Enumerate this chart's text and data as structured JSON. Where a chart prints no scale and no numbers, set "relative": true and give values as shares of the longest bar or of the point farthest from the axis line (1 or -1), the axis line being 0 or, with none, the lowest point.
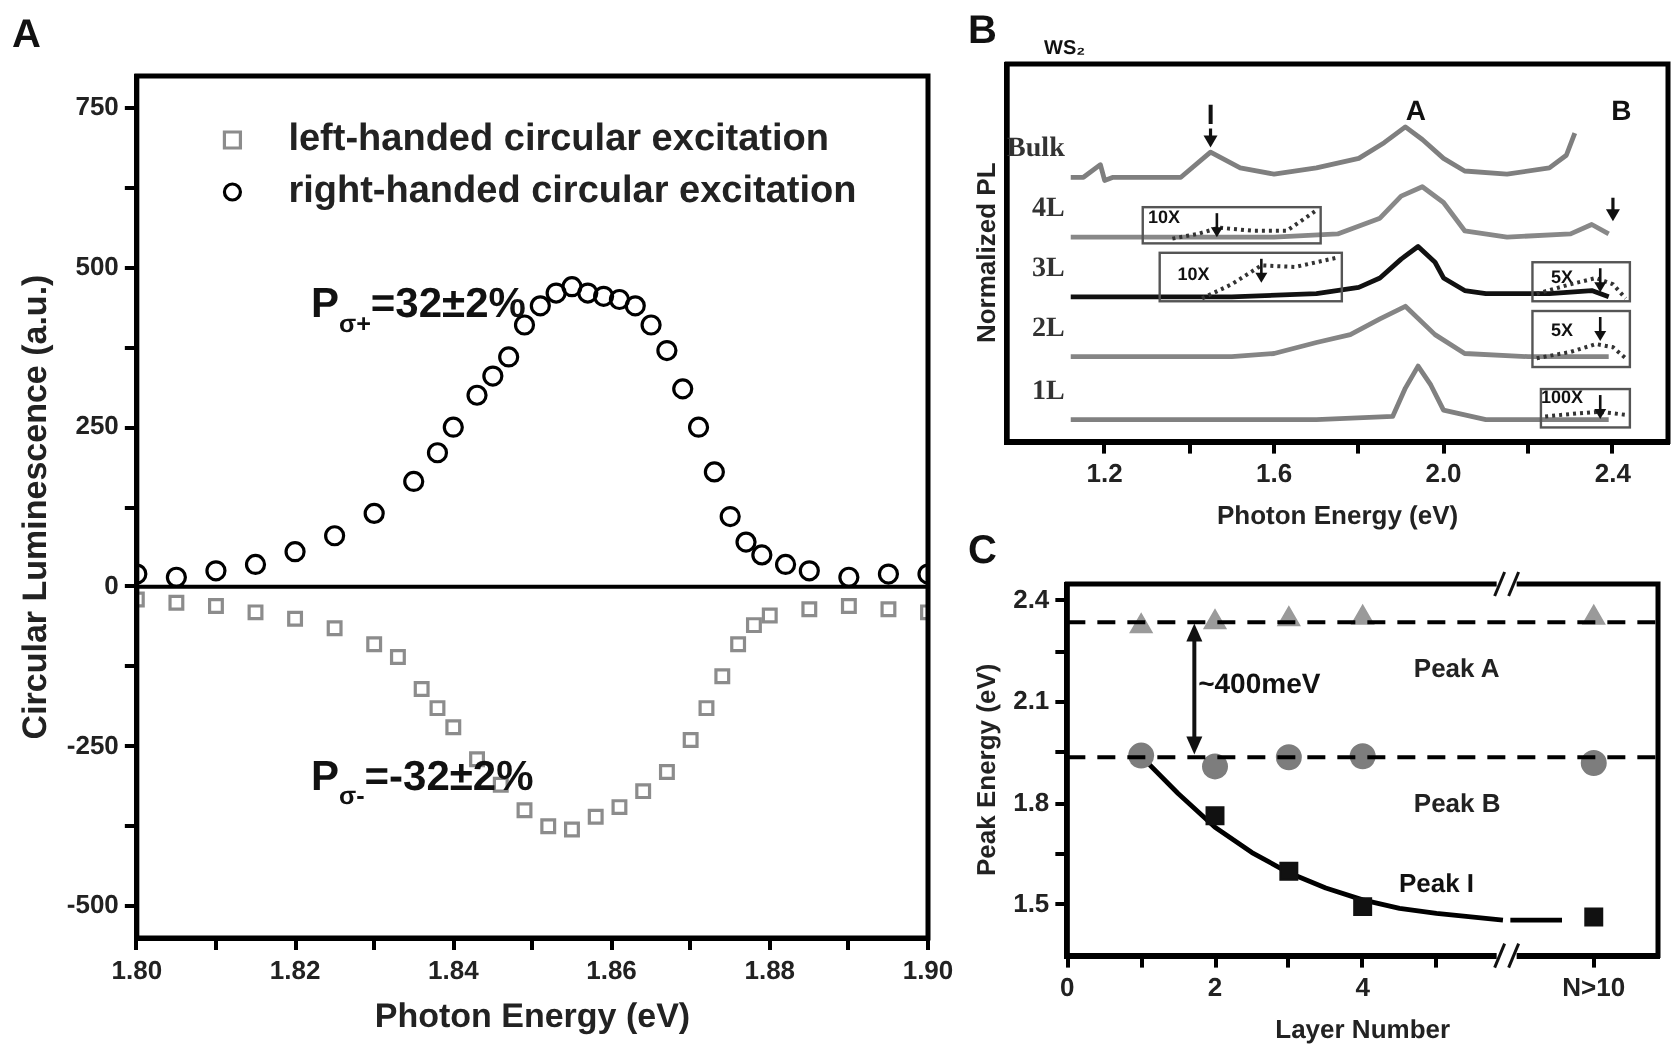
{
  "chart_data": [
    {
      "type": "scatter",
      "title": "A",
      "xlabel": "Photon Energy (eV)",
      "ylabel": "Circular Luminescence (a.u.)",
      "grid": false,
      "xlim": [
        1.8,
        1.9
      ],
      "xticks": [
        {
          "value": 1.8,
          "label": "1.80"
        },
        {
          "value": 1.81,
          "label": null
        },
        {
          "value": 1.82,
          "label": "1.82"
        },
        {
          "value": 1.83,
          "label": null
        },
        {
          "value": 1.84,
          "label": "1.84"
        },
        {
          "value": 1.85,
          "label": null
        },
        {
          "value": 1.86,
          "label": "1.86"
        },
        {
          "value": 1.87,
          "label": null
        },
        {
          "value": 1.88,
          "label": "1.88"
        },
        {
          "value": 1.89,
          "label": null
        },
        {
          "value": 1.9,
          "label": "1.90"
        }
      ],
      "legend": "top",
      "ylim": [
        -550,
        800
      ],
      "yticks": [
        -500,
        {
          "value": -375,
          "label": null
        },
        -250,
        {
          "value": -125,
          "label": null
        },
        0,
        {
          "value": 125,
          "label": null
        },
        250,
        {
          "value": 375,
          "label": null
        },
        500,
        {
          "value": 625,
          "label": null
        },
        750
      ],
      "ref_lines": [
        {
          "axis": "y",
          "value": 0,
          "color": "#000000"
        }
      ],
      "annotations": [
        "P$_{σ+}$=32±2%",
        "P$_{σ-}$=-32±2%"
      ],
      "series": [
        {
          "name": "left-handed circular excitation",
          "color": "#8c8c8c",
          "marker": "square",
          "x": [
            1.8,
            1.805,
            1.81,
            1.815,
            1.82,
            1.825,
            1.83,
            1.833,
            1.836,
            1.838,
            1.84,
            1.843,
            1.846,
            1.849,
            1.852,
            1.855,
            1.858,
            1.861,
            1.864,
            1.867,
            1.87,
            1.872,
            1.874,
            1.876,
            1.878,
            1.88,
            1.885,
            1.89,
            1.895,
            1.9
          ],
          "values": [
            -20,
            -25,
            -30,
            -40,
            -50,
            -65,
            -90,
            -110,
            -160,
            -190,
            -220,
            -270,
            -310,
            -350,
            -375,
            -380,
            -360,
            -345,
            -320,
            -290,
            -240,
            -190,
            -140,
            -90,
            -60,
            -45,
            -35,
            -30,
            -35,
            -40
          ]
        },
        {
          "name": "right-handed circular excitation",
          "color": "#000000",
          "marker": "circle",
          "x": [
            1.8,
            1.805,
            1.81,
            1.815,
            1.82,
            1.825,
            1.83,
            1.835,
            1.838,
            1.84,
            1.843,
            1.845,
            1.847,
            1.849,
            1.851,
            1.853,
            1.855,
            1.857,
            1.859,
            1.861,
            1.863,
            1.865,
            1.867,
            1.869,
            1.871,
            1.873,
            1.875,
            1.877,
            1.879,
            1.882,
            1.885,
            1.89,
            1.895,
            1.9
          ],
          "values": [
            20,
            15,
            25,
            35,
            55,
            80,
            115,
            165,
            210,
            250,
            300,
            330,
            360,
            410,
            440,
            460,
            470,
            460,
            455,
            450,
            440,
            410,
            370,
            310,
            250,
            180,
            110,
            70,
            50,
            35,
            25,
            15,
            20,
            20
          ]
        }
      ]
    },
    {
      "type": "line",
      "title": "B",
      "ylabel": "Normalized PL",
      "xlabel": "Photon Energy (eV)",
      "relative": true,
      "legend": false,
      "grid": false,
      "tick_labels": "x",
      "marker": "none",
      "xlim": [
        0.97,
        2.53
      ],
      "xticks": [
        1.2,
        {
          "value": 1.4,
          "label": null
        },
        1.6,
        {
          "value": 1.8,
          "label": null
        },
        {
          "value": 2.0,
          "label": "2.0"
        },
        {
          "value": 2.2,
          "label": null
        },
        2.4
      ],
      "annotations": [
        "WS₂",
        "I",
        "A",
        "B",
        "10X",
        "10X",
        "5X",
        "5X",
        "100X"
      ],
      "series": [
        {
          "name": "Bulk",
          "color": "#7f7f7f",
          "x": [
            1.12,
            1.15,
            1.19,
            1.2,
            1.22,
            1.38,
            1.45,
            1.52,
            1.6,
            1.7,
            1.8,
            1.86,
            1.91,
            1.95,
            2.0,
            2.05,
            2.15,
            2.25,
            2.29,
            2.31
          ],
          "values": [
            0.84,
            0.84,
            0.88,
            0.83,
            0.84,
            0.84,
            0.92,
            0.87,
            0.85,
            0.87,
            0.9,
            0.95,
            1.0,
            0.96,
            0.9,
            0.86,
            0.85,
            0.87,
            0.91,
            0.98
          ]
        },
        {
          "name": "4L",
          "color": "#888888",
          "x": [
            1.12,
            1.3,
            1.6,
            1.75,
            1.85,
            1.9,
            1.95,
            2.0,
            2.05,
            2.15,
            2.3,
            2.35,
            2.39
          ],
          "values": [
            0.65,
            0.65,
            0.65,
            0.66,
            0.71,
            0.78,
            0.81,
            0.76,
            0.67,
            0.65,
            0.66,
            0.69,
            0.66
          ]
        },
        {
          "name": "3L",
          "color": "#111111",
          "x": [
            1.12,
            1.5,
            1.7,
            1.8,
            1.85,
            1.9,
            1.94,
            1.98,
            2.0,
            2.05,
            2.1,
            2.25,
            2.35,
            2.39
          ],
          "values": [
            0.46,
            0.46,
            0.47,
            0.49,
            0.52,
            0.58,
            0.62,
            0.57,
            0.52,
            0.48,
            0.47,
            0.47,
            0.48,
            0.46
          ]
        },
        {
          "name": "2L",
          "color": "#858585",
          "x": [
            1.12,
            1.5,
            1.6,
            1.7,
            1.78,
            1.85,
            1.91,
            1.98,
            2.05,
            2.2,
            2.39
          ],
          "values": [
            0.27,
            0.27,
            0.28,
            0.315,
            0.34,
            0.39,
            0.43,
            0.34,
            0.28,
            0.27,
            0.27
          ]
        },
        {
          "name": "1L",
          "color": "#808080",
          "x": [
            1.12,
            1.7,
            1.88,
            1.91,
            1.94,
            1.97,
            2.0,
            2.1,
            2.39
          ],
          "values": [
            0.07,
            0.07,
            0.08,
            0.17,
            0.24,
            0.18,
            0.1,
            0.07,
            0.07
          ]
        }
      ]
    },
    {
      "type": "scatter",
      "title": "C",
      "xlabel": "Layer Number",
      "ylabel": "Peak Energy (eV)",
      "legend": false,
      "grid": false,
      "xlim": [
        0,
        8
      ],
      "xticks": [
        0,
        {
          "value": 1,
          "label": null
        },
        2,
        {
          "value": 3,
          "label": null
        },
        4,
        {
          "value": 5,
          "label": null
        },
        {
          "value": 7.13,
          "label": "N>10"
        }
      ],
      "ylim": [
        1.35,
        2.45
      ],
      "yticks": [
        1.5,
        {
          "value": 1.65,
          "label": null
        },
        1.8,
        {
          "value": 1.95,
          "label": null
        },
        2.1,
        {
          "value": 2.25,
          "label": null
        },
        2.4
      ],
      "ref_lines": [
        {
          "axis": "y",
          "value": 2.337,
          "label": "Peak A",
          "line_style": "dashed",
          "color": "#000000"
        },
        {
          "axis": "y",
          "value": 1.937,
          "label": "Peak B",
          "line_style": "dashed",
          "color": "#000000"
        }
      ],
      "annotations": [
        "~400meV",
        "Peak I"
      ],
      "series": [
        {
          "color": "#9a9a9a",
          "marker": "triangle",
          "x": [
            1,
            2,
            3,
            4,
            7.13
          ],
          "values": [
            2.325,
            2.337,
            2.346,
            2.35,
            2.35
          ]
        },
        {
          "color": "#7d7d7d",
          "marker": "circle",
          "x": [
            1,
            2,
            3,
            4,
            7.13
          ],
          "values": [
            1.942,
            1.91,
            1.937,
            1.94,
            1.92
          ]
        },
        {
          "color": "#111111",
          "marker": "square",
          "x": [
            2,
            3,
            4,
            7.13
          ],
          "values": [
            1.764,
            1.6,
            1.495,
            1.464
          ]
        },
        {
          "type": "line",
          "color": "#000000",
          "marker": "none",
          "x": [
            1,
            1.5,
            2,
            2.5,
            3,
            3.5,
            4,
            4.5,
            5,
            5.9,
            5.95,
            6.0,
            6.7
          ],
          "values": [
            1.94,
            1.83,
            1.73,
            1.655,
            1.595,
            1.55,
            1.515,
            1.49,
            1.475,
            1.455,
            null,
            1.455,
            1.455
          ]
        }
      ]
    }
  ]
}
